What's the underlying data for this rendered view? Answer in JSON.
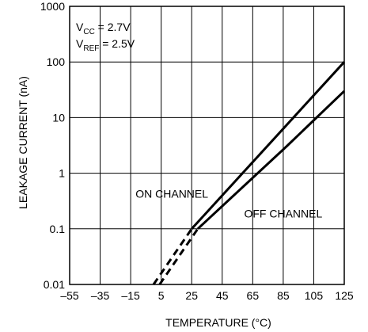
{
  "chart_data": {
    "type": "line",
    "xlabel": "TEMPERATURE (°C)",
    "ylabel": "LEAKAGE CURRENT (nA)",
    "xlim": [
      -55,
      125
    ],
    "ylim": [
      0.01,
      1000
    ],
    "yscale": "log",
    "grid": true,
    "x_ticks": [
      -55,
      -35,
      -15,
      5,
      25,
      45,
      65,
      85,
      105,
      125
    ],
    "x_tick_labels": [
      "–55",
      "–35",
      "–15",
      "5",
      "25",
      "45",
      "65",
      "85",
      "105",
      "125"
    ],
    "y_ticks": [
      0.01,
      0.1,
      1,
      10,
      100,
      1000
    ],
    "y_tick_labels": [
      "0.01",
      "0.1",
      "1",
      "10",
      "100",
      "1000"
    ],
    "annotations": {
      "vcc": {
        "main": "V",
        "sub": "CC",
        "rest": " = 2.7V"
      },
      "vref": {
        "main": "V",
        "sub": "REF",
        "rest": " = 2.5V"
      }
    },
    "series": [
      {
        "name": "ON CHANNEL",
        "label_at": {
          "x": 12,
          "y": 0.36
        },
        "solid": [
          {
            "x": 25,
            "y": 0.1
          },
          {
            "x": 125,
            "y": 100
          }
        ],
        "dashed": [
          {
            "x": 0,
            "y": 0.01
          },
          {
            "x": 25,
            "y": 0.1
          }
        ]
      },
      {
        "name": "OFF CHANNEL",
        "label_at": {
          "x": 85,
          "y": 0.16
        },
        "solid": [
          {
            "x": 29,
            "y": 0.1
          },
          {
            "x": 87,
            "y": 3
          },
          {
            "x": 125,
            "y": 30
          }
        ],
        "dashed": [
          {
            "x": 4,
            "y": 0.01
          },
          {
            "x": 29,
            "y": 0.1
          }
        ]
      }
    ]
  }
}
